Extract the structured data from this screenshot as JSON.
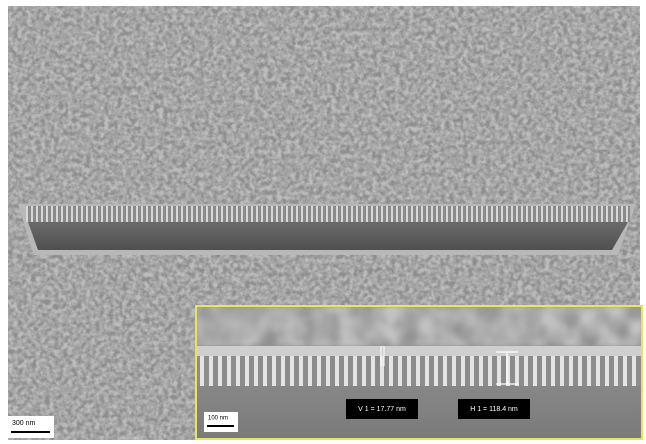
{
  "image": {
    "scale_bar": "300 nm",
    "inset": {
      "scale_bar": "100 nm",
      "measurements": [
        "V 1 = 17.77 nm",
        "H 1 = 118.4 nm"
      ]
    }
  }
}
